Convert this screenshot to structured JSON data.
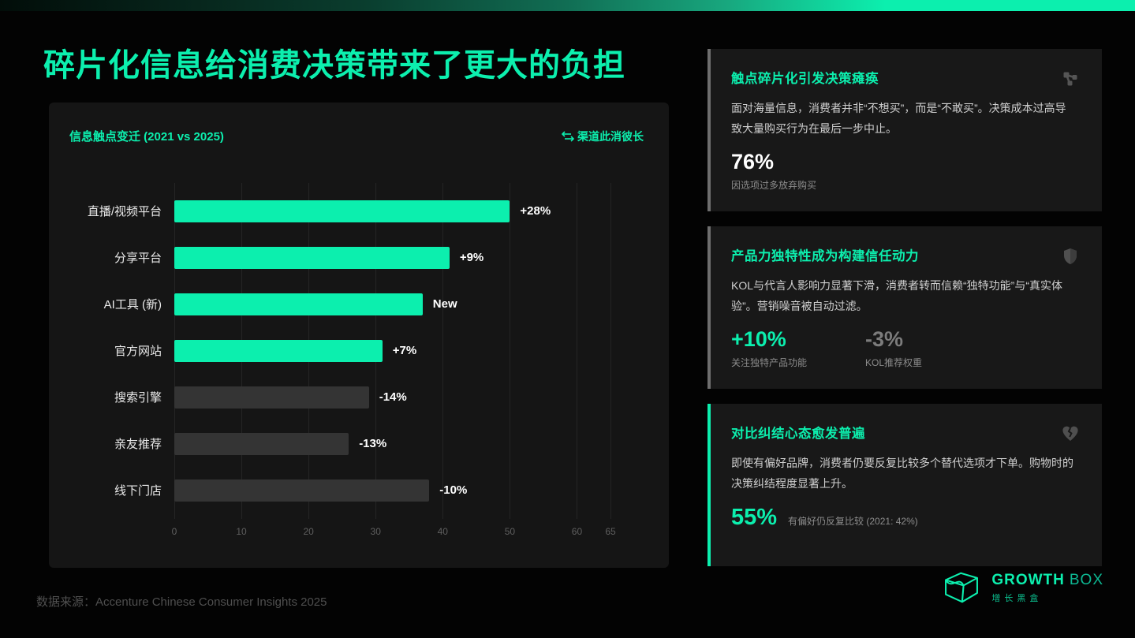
{
  "colors": {
    "accent": "#0cefae",
    "bar_up": "#0cefae",
    "bar_down": "#343434",
    "panel_bg": "#151515",
    "card_bg": "#181818"
  },
  "header": {
    "title": "碎片化信息给消费决策带来了更大的负担"
  },
  "chart_panel": {
    "title": "信息触点变迁 (2021 vs 2025)",
    "legend_label": "渠道此消彼长",
    "legend_icon": "swap-arrows-icon"
  },
  "chart_data": {
    "type": "bar",
    "orientation": "horizontal",
    "title": "信息触点变迁 (2021 vs 2025)",
    "categories": [
      "直播/视频平台",
      "分享平台",
      "AI工具 (新)",
      "官方网站",
      "搜索引擎",
      "亲友推荐",
      "线下门店"
    ],
    "values": [
      50,
      41,
      37,
      31,
      29,
      26,
      38
    ],
    "value_labels": [
      "+28%",
      "+9%",
      "New",
      "+7%",
      "-14%",
      "-13%",
      "-10%"
    ],
    "trend": [
      "up",
      "up",
      "up",
      "up",
      "down",
      "down",
      "down"
    ],
    "xlim": [
      0,
      65
    ],
    "xticks": [
      0,
      10,
      20,
      30,
      40,
      50,
      60,
      65
    ],
    "grid": true,
    "legend_position": "top-right"
  },
  "cards": [
    {
      "title": "触点碎片化引发决策瘫痪",
      "icon": "network-icon",
      "body": "面对海量信息，消费者并非“不想买”，而是“不敢买”。决策成本过高导致大量购买行为在最后一步中止。",
      "accent_border": false,
      "stats_layout": "stacked",
      "stats": [
        {
          "value": "76%",
          "caption": "因选项过多放弃购买",
          "style": "white"
        }
      ]
    },
    {
      "title": "产品力独特性成为构建信任动力",
      "icon": "shield-icon",
      "body": "KOL与代言人影响力显著下滑，消费者转而信赖“独特功能”与“真实体验”。营销噪音被自动过滤。",
      "accent_border": false,
      "stats_layout": "stacked",
      "stats": [
        {
          "value": "+10%",
          "caption": "关注独特产品功能",
          "style": "accent"
        },
        {
          "value": "-3%",
          "caption": "KOL推荐权重",
          "style": "muted"
        }
      ]
    },
    {
      "title": "对比纠结心态愈发普遍",
      "icon": "broken-heart-icon",
      "body": "即使有偏好品牌，消费者仍要反复比较多个替代选项才下单。购物时的决策纠结程度显著上升。",
      "accent_border": true,
      "stats_layout": "inline",
      "stats": [
        {
          "value": "55%",
          "caption": "有偏好仍反复比较 (2021: 42%)",
          "style": "accent"
        }
      ]
    }
  ],
  "footer": {
    "source": "数据来源：Accenture Chinese Consumer Insights 2025"
  },
  "logo": {
    "brand_strong": "GROWTH",
    "brand_light": "BOX",
    "subtitle": "增长黑盒"
  }
}
